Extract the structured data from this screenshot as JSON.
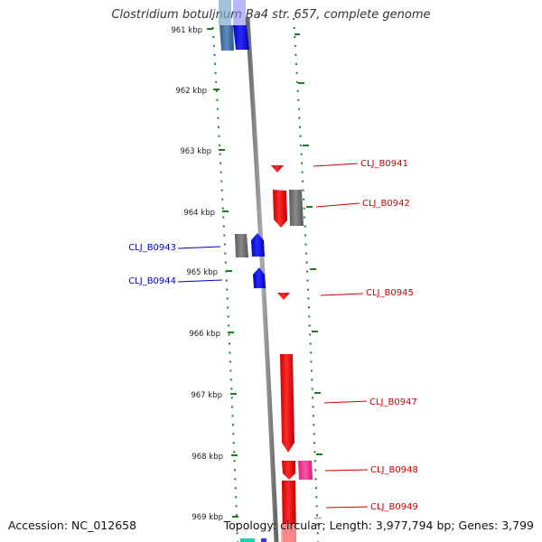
{
  "title": "Clostridium botulinum Ba4 str. 657, complete genome",
  "footer": {
    "accession": "Accession: NC_012658",
    "summary": "Topology: circular; Length: 3,977,794 bp; Genes: 3,799"
  },
  "colors": {
    "backbone": "#888888",
    "tick": "#1e7d1e",
    "forward_cds": "#ff0000",
    "reverse_cds": "#0000ff",
    "gray_feature": "#777777",
    "pink_feature": "#ff3399",
    "forward_label": "#cc0000",
    "reverse_label": "#0000bb"
  },
  "scale": {
    "unit": "kbp",
    "ticks": [
      {
        "label": "961 kbp",
        "kbp": 961
      },
      {
        "label": "962 kbp",
        "kbp": 962
      },
      {
        "label": "963 kbp",
        "kbp": 963
      },
      {
        "label": "964 kbp",
        "kbp": 964
      },
      {
        "label": "965 kbp",
        "kbp": 965
      },
      {
        "label": "966 kbp",
        "kbp": 966
      },
      {
        "label": "967 kbp",
        "kbp": 967
      },
      {
        "label": "968 kbp",
        "kbp": 968
      },
      {
        "label": "969 kbp",
        "kbp": 969
      }
    ]
  },
  "gene_labels": [
    {
      "label": "CLJ_B0941",
      "strand": "forward"
    },
    {
      "label": "CLJ_B0942",
      "strand": "forward"
    },
    {
      "label": "CLJ_B0943",
      "strand": "reverse"
    },
    {
      "label": "CLJ_B0944",
      "strand": "reverse"
    },
    {
      "label": "CLJ_B0945",
      "strand": "forward"
    },
    {
      "label": "CLJ_B0947",
      "strand": "forward"
    },
    {
      "label": "CLJ_B0948",
      "strand": "forward"
    },
    {
      "label": "CLJ_B0949",
      "strand": "forward"
    }
  ]
}
